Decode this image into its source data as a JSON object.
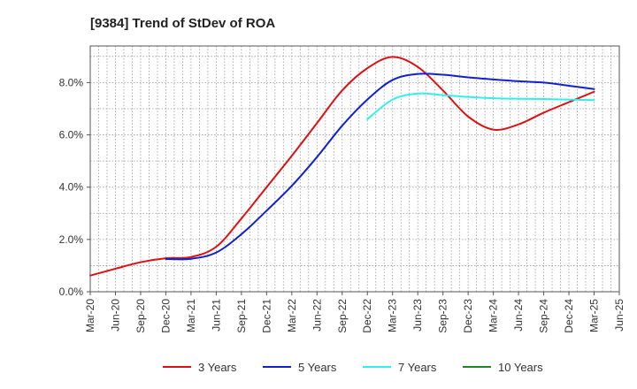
{
  "chart_data": {
    "type": "line",
    "title": "[9384]  Trend of StDev of ROA",
    "xlabel": "",
    "ylabel": "",
    "x_ticks": [
      "Mar-20",
      "Jun-20",
      "Sep-20",
      "Dec-20",
      "Mar-21",
      "Jun-21",
      "Sep-21",
      "Dec-21",
      "Mar-22",
      "Jun-22",
      "Sep-22",
      "Dec-22",
      "Mar-23",
      "Jun-23",
      "Sep-23",
      "Dec-23",
      "Mar-24",
      "Jun-24",
      "Sep-24",
      "Dec-24",
      "Mar-25",
      "Jun-25"
    ],
    "y_ticks": [
      "0.0%",
      "2.0%",
      "4.0%",
      "6.0%",
      "8.0%"
    ],
    "ylim": [
      0,
      9.4
    ],
    "grid": true,
    "legend_position": "bottom",
    "series": [
      {
        "name": "3 Years",
        "color": "#dd1111",
        "x": [
          "Mar-20",
          "Jun-20",
          "Sep-20",
          "Dec-20",
          "Mar-21",
          "Jun-21",
          "Sep-21",
          "Dec-21",
          "Mar-22",
          "Jun-22",
          "Sep-22",
          "Dec-22",
          "Mar-23",
          "Jun-23",
          "Sep-23",
          "Dec-23",
          "Mar-24",
          "Jun-24",
          "Sep-24",
          "Dec-24",
          "Mar-25"
        ],
        "values": [
          0.62,
          0.88,
          1.13,
          1.28,
          1.33,
          1.72,
          2.8,
          4.0,
          5.2,
          6.45,
          7.7,
          8.55,
          8.98,
          8.6,
          7.7,
          6.7,
          6.2,
          6.4,
          6.85,
          7.25,
          7.65
        ]
      },
      {
        "name": "5 Years",
        "color": "#1122cc",
        "x": [
          "Dec-20",
          "Mar-21",
          "Jun-21",
          "Sep-21",
          "Dec-21",
          "Mar-22",
          "Jun-22",
          "Sep-22",
          "Dec-22",
          "Mar-23",
          "Jun-23",
          "Sep-23",
          "Dec-23",
          "Mar-24",
          "Jun-24",
          "Sep-24",
          "Dec-24",
          "Mar-25"
        ],
        "values": [
          1.25,
          1.26,
          1.5,
          2.2,
          3.1,
          4.05,
          5.15,
          6.35,
          7.35,
          8.1,
          8.33,
          8.3,
          8.2,
          8.12,
          8.05,
          8.0,
          7.88,
          7.75
        ]
      },
      {
        "name": "7 Years",
        "color": "#33eeee",
        "x": [
          "Dec-22",
          "Mar-23",
          "Jun-23",
          "Sep-23",
          "Dec-23",
          "Mar-24",
          "Jun-24",
          "Sep-24",
          "Dec-24",
          "Mar-25"
        ],
        "values": [
          6.6,
          7.35,
          7.58,
          7.52,
          7.45,
          7.4,
          7.38,
          7.37,
          7.35,
          7.33
        ]
      },
      {
        "name": "10 Years",
        "color": "#228822",
        "x": [],
        "values": []
      }
    ]
  }
}
